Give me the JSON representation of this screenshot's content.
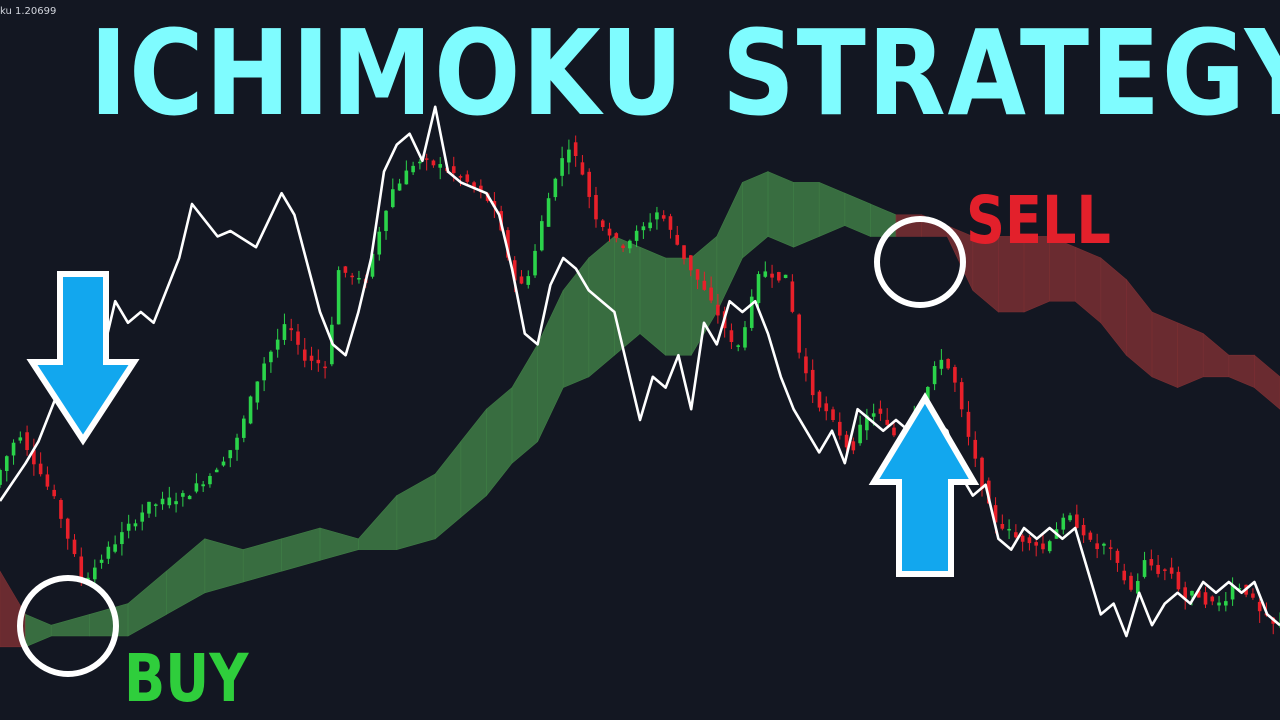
{
  "header": {
    "ticker": "ku 1.20699",
    "headline": "ICHIMOKU STRATEGY"
  },
  "labels": {
    "buy": "BUY",
    "sell": "SELL"
  },
  "colors": {
    "background": "#131722",
    "headline": "#7ffcff",
    "buy": "#2fce3c",
    "sell": "#e3202b",
    "bullish_candle": "#2bd34a",
    "bearish_candle": "#e8202a",
    "cloud_bullish": "#3f7d45",
    "cloud_bearish": "#7a2f33",
    "lagging_line": "#ffffff",
    "arrow": "#12a7ee",
    "signal_circle": "#ffffff"
  },
  "icons": [
    "buy-arrow-down-icon",
    "sell-arrow-up-icon",
    "buy-signal-circle",
    "sell-signal-circle"
  ],
  "chart_data": {
    "type": "candlestick",
    "title": "ICHIMOKU STRATEGY",
    "xlabel": "",
    "ylabel": "",
    "ylim": [
      0,
      100
    ],
    "grid": false,
    "legend": "none",
    "close_path": [
      [
        0,
        38
      ],
      [
        2,
        48
      ],
      [
        5,
        34
      ],
      [
        7,
        20
      ],
      [
        9,
        26
      ],
      [
        12,
        34
      ],
      [
        15,
        36
      ],
      [
        17,
        40
      ],
      [
        19,
        46
      ],
      [
        21,
        60
      ],
      [
        23,
        68
      ],
      [
        24,
        62
      ],
      [
        26,
        60
      ],
      [
        27,
        78
      ],
      [
        29,
        75
      ],
      [
        30,
        84
      ],
      [
        31,
        92
      ],
      [
        33,
        98
      ],
      [
        35,
        97
      ],
      [
        37,
        94
      ],
      [
        39,
        90
      ],
      [
        40,
        82
      ],
      [
        41,
        74
      ],
      [
        42,
        78
      ],
      [
        43,
        88
      ],
      [
        44,
        96
      ],
      [
        45,
        101
      ],
      [
        46,
        96
      ],
      [
        47,
        88
      ],
      [
        49,
        82
      ],
      [
        51,
        86
      ],
      [
        52,
        89
      ],
      [
        54,
        80
      ],
      [
        56,
        72
      ],
      [
        57,
        68
      ],
      [
        58,
        62
      ],
      [
        59,
        70
      ],
      [
        60,
        78
      ],
      [
        62,
        76
      ],
      [
        63,
        62
      ],
      [
        64,
        55
      ],
      [
        66,
        48
      ],
      [
        67,
        44
      ],
      [
        68,
        50
      ],
      [
        69,
        52
      ],
      [
        70,
        48
      ],
      [
        71,
        46
      ],
      [
        72,
        52
      ],
      [
        73,
        56
      ],
      [
        74,
        62
      ],
      [
        75,
        58
      ],
      [
        76,
        48
      ],
      [
        77,
        40
      ],
      [
        78,
        32
      ],
      [
        80,
        28
      ],
      [
        81,
        28
      ],
      [
        82,
        26
      ],
      [
        83,
        30
      ],
      [
        84,
        32
      ],
      [
        85,
        30
      ],
      [
        86,
        26
      ],
      [
        87,
        27
      ],
      [
        88,
        22
      ],
      [
        89,
        18
      ],
      [
        90,
        24
      ],
      [
        91,
        22
      ],
      [
        92,
        22
      ],
      [
        93,
        17
      ],
      [
        94,
        18
      ],
      [
        95,
        16
      ],
      [
        96,
        16
      ],
      [
        97,
        20
      ],
      [
        98,
        18
      ],
      [
        99,
        14
      ],
      [
        100,
        12
      ]
    ],
    "lagging_span": [
      [
        0,
        35
      ],
      [
        2,
        42
      ],
      [
        3,
        46
      ],
      [
        5,
        58
      ],
      [
        6,
        60
      ],
      [
        8,
        62
      ],
      [
        9,
        72
      ],
      [
        10,
        68
      ],
      [
        11,
        70
      ],
      [
        12,
        68
      ],
      [
        14,
        80
      ],
      [
        15,
        90
      ],
      [
        17,
        84
      ],
      [
        18,
        85
      ],
      [
        20,
        82
      ],
      [
        22,
        92
      ],
      [
        23,
        88
      ],
      [
        25,
        70
      ],
      [
        26,
        64
      ],
      [
        27,
        62
      ],
      [
        28,
        70
      ],
      [
        29,
        80
      ],
      [
        30,
        96
      ],
      [
        31,
        101
      ],
      [
        32,
        103
      ],
      [
        33,
        98
      ],
      [
        34,
        108
      ],
      [
        35,
        96
      ],
      [
        36,
        94
      ],
      [
        38,
        92
      ],
      [
        39,
        88
      ],
      [
        40,
        78
      ],
      [
        41,
        66
      ],
      [
        42,
        64
      ],
      [
        43,
        75
      ],
      [
        44,
        80
      ],
      [
        45,
        78
      ],
      [
        46,
        74
      ],
      [
        47,
        72
      ],
      [
        48,
        70
      ],
      [
        49,
        60
      ],
      [
        50,
        50
      ],
      [
        51,
        58
      ],
      [
        52,
        56
      ],
      [
        53,
        62
      ],
      [
        54,
        52
      ],
      [
        55,
        68
      ],
      [
        56,
        64
      ],
      [
        57,
        72
      ],
      [
        58,
        70
      ],
      [
        59,
        72
      ],
      [
        60,
        66
      ],
      [
        61,
        58
      ],
      [
        62,
        52
      ],
      [
        63,
        48
      ],
      [
        64,
        44
      ],
      [
        65,
        48
      ],
      [
        66,
        42
      ],
      [
        67,
        52
      ],
      [
        68,
        50
      ],
      [
        69,
        48
      ],
      [
        70,
        50
      ],
      [
        71,
        48
      ],
      [
        72,
        46
      ],
      [
        73,
        50
      ],
      [
        74,
        48
      ],
      [
        75,
        40
      ],
      [
        76,
        36
      ],
      [
        77,
        38
      ],
      [
        78,
        28
      ],
      [
        79,
        26
      ],
      [
        80,
        30
      ],
      [
        81,
        28
      ],
      [
        82,
        30
      ],
      [
        83,
        28
      ],
      [
        84,
        30
      ],
      [
        85,
        22
      ],
      [
        86,
        14
      ],
      [
        87,
        16
      ],
      [
        88,
        10
      ],
      [
        89,
        18
      ],
      [
        90,
        12
      ],
      [
        91,
        16
      ],
      [
        92,
        18
      ],
      [
        93,
        16
      ],
      [
        94,
        20
      ],
      [
        95,
        18
      ],
      [
        96,
        20
      ],
      [
        97,
        18
      ],
      [
        98,
        20
      ],
      [
        99,
        14
      ],
      [
        100,
        12
      ]
    ],
    "cloud": [
      {
        "x": 0,
        "upper": 22,
        "lower": 8,
        "color": "bearish"
      },
      {
        "x": 2,
        "upper": 14,
        "lower": 8,
        "color": "bearish"
      },
      {
        "x": 4,
        "upper": 12,
        "lower": 10,
        "color": "bullish"
      },
      {
        "x": 7,
        "upper": 14,
        "lower": 10,
        "color": "bullish"
      },
      {
        "x": 10,
        "upper": 16,
        "lower": 10,
        "color": "bullish"
      },
      {
        "x": 13,
        "upper": 22,
        "lower": 14,
        "color": "bullish"
      },
      {
        "x": 16,
        "upper": 28,
        "lower": 18,
        "color": "bullish"
      },
      {
        "x": 19,
        "upper": 26,
        "lower": 20,
        "color": "bullish"
      },
      {
        "x": 22,
        "upper": 28,
        "lower": 22,
        "color": "bullish"
      },
      {
        "x": 25,
        "upper": 30,
        "lower": 24,
        "color": "bullish"
      },
      {
        "x": 28,
        "upper": 28,
        "lower": 26,
        "color": "bullish"
      },
      {
        "x": 31,
        "upper": 36,
        "lower": 26,
        "color": "bullish"
      },
      {
        "x": 34,
        "upper": 40,
        "lower": 28,
        "color": "bullish"
      },
      {
        "x": 36,
        "upper": 46,
        "lower": 32,
        "color": "bullish"
      },
      {
        "x": 38,
        "upper": 52,
        "lower": 36,
        "color": "bullish"
      },
      {
        "x": 40,
        "upper": 56,
        "lower": 42,
        "color": "bullish"
      },
      {
        "x": 42,
        "upper": 64,
        "lower": 46,
        "color": "bullish"
      },
      {
        "x": 44,
        "upper": 74,
        "lower": 56,
        "color": "bullish"
      },
      {
        "x": 46,
        "upper": 80,
        "lower": 58,
        "color": "bullish"
      },
      {
        "x": 48,
        "upper": 84,
        "lower": 62,
        "color": "bullish"
      },
      {
        "x": 50,
        "upper": 82,
        "lower": 66,
        "color": "bullish"
      },
      {
        "x": 52,
        "upper": 80,
        "lower": 62,
        "color": "bullish"
      },
      {
        "x": 54,
        "upper": 80,
        "lower": 62,
        "color": "bullish"
      },
      {
        "x": 56,
        "upper": 84,
        "lower": 70,
        "color": "bullish"
      },
      {
        "x": 58,
        "upper": 94,
        "lower": 80,
        "color": "bullish"
      },
      {
        "x": 60,
        "upper": 96,
        "lower": 84,
        "color": "bullish"
      },
      {
        "x": 62,
        "upper": 94,
        "lower": 82,
        "color": "bullish"
      },
      {
        "x": 64,
        "upper": 94,
        "lower": 84,
        "color": "bullish"
      },
      {
        "x": 66,
        "upper": 92,
        "lower": 86,
        "color": "bullish"
      },
      {
        "x": 68,
        "upper": 90,
        "lower": 84,
        "color": "bullish"
      },
      {
        "x": 70,
        "upper": 88,
        "lower": 84,
        "color": "bullish"
      },
      {
        "x": 72,
        "upper": 88,
        "lower": 84,
        "color": "bearish"
      },
      {
        "x": 74,
        "upper": 86,
        "lower": 84,
        "color": "bearish"
      },
      {
        "x": 76,
        "upper": 84,
        "lower": 74,
        "color": "bearish"
      },
      {
        "x": 78,
        "upper": 84,
        "lower": 70,
        "color": "bearish"
      },
      {
        "x": 80,
        "upper": 84,
        "lower": 70,
        "color": "bearish"
      },
      {
        "x": 82,
        "upper": 84,
        "lower": 72,
        "color": "bearish"
      },
      {
        "x": 84,
        "upper": 82,
        "lower": 72,
        "color": "bearish"
      },
      {
        "x": 86,
        "upper": 80,
        "lower": 68,
        "color": "bearish"
      },
      {
        "x": 88,
        "upper": 76,
        "lower": 62,
        "color": "bearish"
      },
      {
        "x": 90,
        "upper": 70,
        "lower": 58,
        "color": "bearish"
      },
      {
        "x": 92,
        "upper": 68,
        "lower": 56,
        "color": "bearish"
      },
      {
        "x": 94,
        "upper": 66,
        "lower": 58,
        "color": "bearish"
      },
      {
        "x": 96,
        "upper": 62,
        "lower": 58,
        "color": "bearish"
      },
      {
        "x": 98,
        "upper": 62,
        "lower": 56,
        "color": "bearish"
      },
      {
        "x": 100,
        "upper": 58,
        "lower": 52,
        "color": "bearish"
      }
    ],
    "signals": [
      {
        "type": "buy",
        "label": "BUY",
        "x": 5
      },
      {
        "type": "sell",
        "label": "SELL",
        "x": 72
      }
    ]
  }
}
